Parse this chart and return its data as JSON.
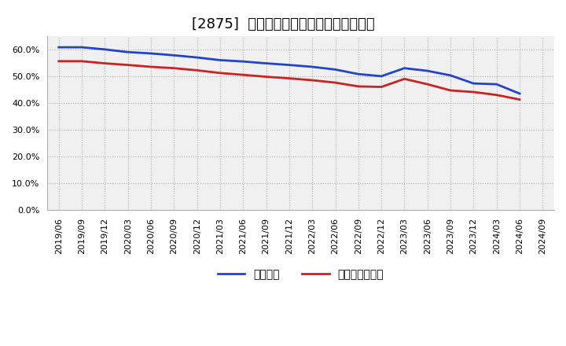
{
  "title": "[2875]  固定比率、固定長期適合率の推移",
  "x_labels": [
    "2019/06",
    "2019/09",
    "2019/12",
    "2020/03",
    "2020/06",
    "2020/09",
    "2020/12",
    "2021/03",
    "2021/06",
    "2021/09",
    "2021/12",
    "2022/03",
    "2022/06",
    "2022/09",
    "2022/12",
    "2023/03",
    "2023/06",
    "2023/09",
    "2023/12",
    "2024/03",
    "2024/06",
    "2024/09"
  ],
  "fixed_ratio": [
    0.608,
    0.608,
    0.6,
    0.59,
    0.585,
    0.578,
    0.57,
    0.56,
    0.555,
    0.548,
    0.542,
    0.535,
    0.525,
    0.508,
    0.5,
    0.53,
    0.52,
    0.503,
    0.473,
    0.47,
    0.435,
    null
  ],
  "fixed_longterm_ratio": [
    0.556,
    0.556,
    0.548,
    0.542,
    0.535,
    0.53,
    0.522,
    0.512,
    0.505,
    0.498,
    0.492,
    0.485,
    0.476,
    0.462,
    0.46,
    0.49,
    0.47,
    0.447,
    0.441,
    0.43,
    0.413,
    null
  ],
  "line1_color": "#2244cc",
  "line2_color": "#cc2222",
  "line1_label": "固定比率",
  "line2_label": "固定長期適合率",
  "ylim": [
    0.0,
    0.65
  ],
  "yticks": [
    0.0,
    0.1,
    0.2,
    0.3,
    0.4,
    0.5,
    0.6
  ],
  "grid_color": "#b0b0b0",
  "plot_bg_color": "#f0f0f0",
  "background_color": "#ffffff",
  "title_fontsize": 13,
  "legend_fontsize": 10,
  "tick_fontsize": 8
}
